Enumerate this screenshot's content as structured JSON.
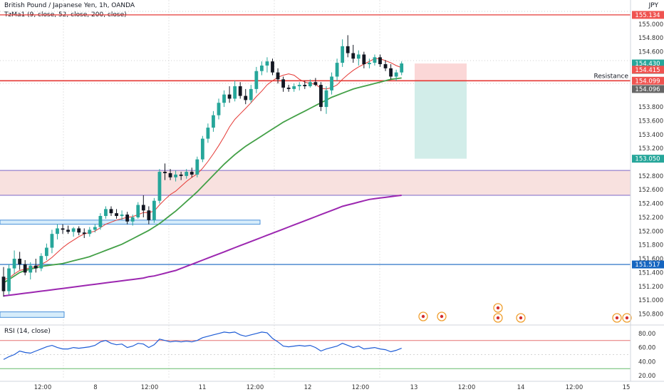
{
  "header": {
    "title": "British Pound / Japanese Yen, 1h, OANDA",
    "indicator": "TzMa1 (9, close, 52, close, 200, close)",
    "currency": "JPY"
  },
  "rsi_panel": {
    "label": "RSI (14, close)",
    "ticks": [
      "80.00",
      "60.00",
      "40.00",
      "20.00"
    ]
  },
  "price_ticks": [
    "155.000",
    "154.800",
    "154.600",
    "154.200",
    "153.800",
    "153.600",
    "153.400",
    "153.200",
    "152.800",
    "152.600",
    "152.400",
    "152.200",
    "152.000",
    "151.800",
    "151.600",
    "151.400",
    "151.200",
    "151.000",
    "150.800"
  ],
  "price_badges": [
    {
      "text": "155.134",
      "price": 155.134,
      "color": "#ef5350"
    },
    {
      "text": "154.430",
      "sub": "26:08",
      "price": 154.43,
      "color": "#26a69a"
    },
    {
      "text": "154.415",
      "price": 154.34,
      "color": "#ef5350"
    },
    {
      "text": "154.099",
      "price": 154.18,
      "color": "#ef5350"
    },
    {
      "text": "154.096",
      "price": 154.06,
      "color": "#666666"
    },
    {
      "text": "153.050",
      "price": 153.05,
      "color": "#26a69a"
    },
    {
      "text": "151.517",
      "price": 151.517,
      "color": "#1565c0"
    }
  ],
  "annotations": {
    "resistance": "Resistance"
  },
  "x_ticks": [
    "12:00",
    "8",
    "12:00",
    "11",
    "12:00",
    "12",
    "12:00",
    "13",
    "12:00",
    "14",
    "12:00",
    "15"
  ],
  "colors": {
    "up": "#26a69a",
    "down": "#131722",
    "ma_fast": "#e53935",
    "ma_mid": "#43a047",
    "ma_slow": "#9c27b0",
    "rsi": "#1e5cd6"
  },
  "chart_data": {
    "type": "candlestick",
    "title": "British Pound / Japanese Yen, 1h, OANDA",
    "ylim": [
      150.65,
      155.35
    ],
    "rsi_ylim": [
      15,
      90
    ],
    "candles": [
      {
        "o": 151.34,
        "h": 151.48,
        "l": 151.05,
        "c": 151.13
      },
      {
        "o": 151.13,
        "h": 151.52,
        "l": 151.08,
        "c": 151.46
      },
      {
        "o": 151.46,
        "h": 151.72,
        "l": 151.38,
        "c": 151.6
      },
      {
        "o": 151.6,
        "h": 151.7,
        "l": 151.44,
        "c": 151.52
      },
      {
        "o": 151.52,
        "h": 151.58,
        "l": 151.36,
        "c": 151.4
      },
      {
        "o": 151.4,
        "h": 151.55,
        "l": 151.3,
        "c": 151.5
      },
      {
        "o": 151.5,
        "h": 151.6,
        "l": 151.4,
        "c": 151.46
      },
      {
        "o": 151.46,
        "h": 151.68,
        "l": 151.42,
        "c": 151.64
      },
      {
        "o": 151.64,
        "h": 151.82,
        "l": 151.58,
        "c": 151.76
      },
      {
        "o": 151.76,
        "h": 152.02,
        "l": 151.68,
        "c": 151.96
      },
      {
        "o": 151.96,
        "h": 152.1,
        "l": 151.88,
        "c": 152.04
      },
      {
        "o": 152.04,
        "h": 152.1,
        "l": 151.96,
        "c": 152.02
      },
      {
        "o": 152.02,
        "h": 152.08,
        "l": 151.96,
        "c": 151.99
      },
      {
        "o": 151.99,
        "h": 152.06,
        "l": 151.92,
        "c": 152.04
      },
      {
        "o": 152.04,
        "h": 152.07,
        "l": 151.94,
        "c": 151.98
      },
      {
        "o": 151.98,
        "h": 152.04,
        "l": 151.9,
        "c": 151.96
      },
      {
        "o": 151.96,
        "h": 152.06,
        "l": 151.92,
        "c": 152.02
      },
      {
        "o": 152.02,
        "h": 152.1,
        "l": 151.98,
        "c": 152.06
      },
      {
        "o": 152.06,
        "h": 152.26,
        "l": 152.02,
        "c": 152.22
      },
      {
        "o": 152.22,
        "h": 152.36,
        "l": 152.18,
        "c": 152.32
      },
      {
        "o": 152.32,
        "h": 152.36,
        "l": 152.22,
        "c": 152.26
      },
      {
        "o": 152.26,
        "h": 152.32,
        "l": 152.18,
        "c": 152.22
      },
      {
        "o": 152.22,
        "h": 152.3,
        "l": 152.16,
        "c": 152.24
      },
      {
        "o": 152.24,
        "h": 152.28,
        "l": 152.1,
        "c": 152.14
      },
      {
        "o": 152.14,
        "h": 152.24,
        "l": 152.08,
        "c": 152.2
      },
      {
        "o": 152.2,
        "h": 152.42,
        "l": 152.18,
        "c": 152.38
      },
      {
        "o": 152.38,
        "h": 152.52,
        "l": 152.2,
        "c": 152.3
      },
      {
        "o": 152.3,
        "h": 152.36,
        "l": 152.1,
        "c": 152.16
      },
      {
        "o": 152.16,
        "h": 152.48,
        "l": 152.12,
        "c": 152.44
      },
      {
        "o": 152.44,
        "h": 152.9,
        "l": 152.4,
        "c": 152.86
      },
      {
        "o": 152.86,
        "h": 152.98,
        "l": 152.74,
        "c": 152.84
      },
      {
        "o": 152.84,
        "h": 152.9,
        "l": 152.74,
        "c": 152.78
      },
      {
        "o": 152.78,
        "h": 152.88,
        "l": 152.72,
        "c": 152.82
      },
      {
        "o": 152.82,
        "h": 152.86,
        "l": 152.74,
        "c": 152.8
      },
      {
        "o": 152.8,
        "h": 152.9,
        "l": 152.76,
        "c": 152.86
      },
      {
        "o": 152.86,
        "h": 152.92,
        "l": 152.78,
        "c": 152.82
      },
      {
        "o": 152.82,
        "h": 153.08,
        "l": 152.78,
        "c": 153.04
      },
      {
        "o": 153.04,
        "h": 153.38,
        "l": 153.0,
        "c": 153.34
      },
      {
        "o": 153.34,
        "h": 153.56,
        "l": 153.28,
        "c": 153.5
      },
      {
        "o": 153.5,
        "h": 153.74,
        "l": 153.44,
        "c": 153.68
      },
      {
        "o": 153.68,
        "h": 153.92,
        "l": 153.62,
        "c": 153.86
      },
      {
        "o": 153.86,
        "h": 154.04,
        "l": 153.8,
        "c": 153.98
      },
      {
        "o": 153.98,
        "h": 154.1,
        "l": 153.86,
        "c": 153.92
      },
      {
        "o": 153.92,
        "h": 154.18,
        "l": 153.88,
        "c": 154.1
      },
      {
        "o": 154.1,
        "h": 154.16,
        "l": 153.92,
        "c": 153.96
      },
      {
        "o": 153.96,
        "h": 154.06,
        "l": 153.84,
        "c": 153.9
      },
      {
        "o": 153.9,
        "h": 154.12,
        "l": 153.86,
        "c": 154.06
      },
      {
        "o": 154.06,
        "h": 154.38,
        "l": 154.0,
        "c": 154.32
      },
      {
        "o": 154.32,
        "h": 154.46,
        "l": 154.26,
        "c": 154.4
      },
      {
        "o": 154.4,
        "h": 154.52,
        "l": 154.3,
        "c": 154.46
      },
      {
        "o": 154.46,
        "h": 154.5,
        "l": 154.26,
        "c": 154.3
      },
      {
        "o": 154.3,
        "h": 154.36,
        "l": 154.14,
        "c": 154.2
      },
      {
        "o": 154.2,
        "h": 154.24,
        "l": 154.02,
        "c": 154.08
      },
      {
        "o": 154.08,
        "h": 154.12,
        "l": 154.02,
        "c": 154.06
      },
      {
        "o": 154.06,
        "h": 154.14,
        "l": 154.02,
        "c": 154.1
      },
      {
        "o": 154.1,
        "h": 154.16,
        "l": 154.04,
        "c": 154.12
      },
      {
        "o": 154.12,
        "h": 154.18,
        "l": 154.06,
        "c": 154.1
      },
      {
        "o": 154.1,
        "h": 154.2,
        "l": 154.08,
        "c": 154.16
      },
      {
        "o": 154.16,
        "h": 154.22,
        "l": 154.1,
        "c": 154.12
      },
      {
        "o": 154.12,
        "h": 154.16,
        "l": 153.74,
        "c": 153.8
      },
      {
        "o": 153.8,
        "h": 154.1,
        "l": 153.7,
        "c": 154.04
      },
      {
        "o": 154.04,
        "h": 154.3,
        "l": 153.98,
        "c": 154.24
      },
      {
        "o": 154.24,
        "h": 154.5,
        "l": 154.18,
        "c": 154.44
      },
      {
        "o": 154.44,
        "h": 154.78,
        "l": 154.38,
        "c": 154.68
      },
      {
        "o": 154.68,
        "h": 154.84,
        "l": 154.52,
        "c": 154.58
      },
      {
        "o": 154.58,
        "h": 154.7,
        "l": 154.44,
        "c": 154.5
      },
      {
        "o": 154.5,
        "h": 154.62,
        "l": 154.4,
        "c": 154.56
      },
      {
        "o": 154.56,
        "h": 154.6,
        "l": 154.36,
        "c": 154.42
      },
      {
        "o": 154.42,
        "h": 154.5,
        "l": 154.36,
        "c": 154.44
      },
      {
        "o": 154.44,
        "h": 154.56,
        "l": 154.4,
        "c": 154.52
      },
      {
        "o": 154.52,
        "h": 154.56,
        "l": 154.38,
        "c": 154.42
      },
      {
        "o": 154.42,
        "h": 154.48,
        "l": 154.32,
        "c": 154.36
      },
      {
        "o": 154.36,
        "h": 154.42,
        "l": 154.2,
        "c": 154.24
      },
      {
        "o": 154.24,
        "h": 154.34,
        "l": 154.18,
        "c": 154.3
      },
      {
        "o": 154.3,
        "h": 154.46,
        "l": 154.26,
        "c": 154.43
      }
    ],
    "ma9": [
      151.3,
      151.32,
      151.38,
      151.43,
      151.45,
      151.47,
      151.49,
      151.52,
      151.56,
      151.62,
      151.69,
      151.76,
      151.82,
      151.87,
      151.92,
      151.96,
      151.98,
      152.0,
      152.05,
      152.1,
      152.13,
      152.16,
      152.18,
      152.2,
      152.21,
      152.24,
      152.27,
      152.27,
      152.29,
      152.38,
      152.46,
      152.53,
      152.58,
      152.65,
      152.72,
      152.78,
      152.83,
      152.91,
      153.01,
      153.12,
      153.24,
      153.37,
      153.51,
      153.62,
      153.7,
      153.78,
      153.86,
      153.95,
      154.03,
      154.12,
      154.18,
      154.23,
      154.26,
      154.28,
      154.26,
      154.2,
      154.16,
      154.14,
      154.13,
      154.07,
      154.06,
      154.08,
      154.12,
      154.2,
      154.27,
      154.33,
      154.38,
      154.42,
      154.46,
      154.5,
      154.5,
      154.47,
      154.44,
      154.4,
      154.37
    ],
    "ma52": [
      151.25,
      151.3,
      151.35,
      151.4,
      151.43,
      151.45,
      151.47,
      151.49,
      151.5,
      151.51,
      151.52,
      151.53,
      151.55,
      151.57,
      151.59,
      151.61,
      151.63,
      151.66,
      151.69,
      151.72,
      151.75,
      151.78,
      151.81,
      151.85,
      151.89,
      151.93,
      151.97,
      152.01,
      152.06,
      152.11,
      152.17,
      152.23,
      152.29,
      152.36,
      152.43,
      152.5,
      152.57,
      152.65,
      152.73,
      152.81,
      152.89,
      152.97,
      153.04,
      153.11,
      153.17,
      153.23,
      153.28,
      153.33,
      153.38,
      153.43,
      153.48,
      153.53,
      153.58,
      153.62,
      153.66,
      153.7,
      153.74,
      153.78,
      153.82,
      153.86,
      153.9,
      153.94,
      153.97,
      154.0,
      154.03,
      154.06,
      154.08,
      154.1,
      154.12,
      154.14,
      154.16,
      154.18,
      154.2,
      154.21,
      154.22
    ],
    "ma200": [
      151.06,
      151.07,
      151.08,
      151.09,
      151.1,
      151.11,
      151.12,
      151.13,
      151.14,
      151.15,
      151.16,
      151.17,
      151.18,
      151.19,
      151.2,
      151.21,
      151.22,
      151.23,
      151.24,
      151.25,
      151.26,
      151.27,
      151.28,
      151.29,
      151.3,
      151.31,
      151.32,
      151.34,
      151.35,
      151.37,
      151.39,
      151.41,
      151.43,
      151.46,
      151.49,
      151.52,
      151.55,
      151.58,
      151.61,
      151.64,
      151.67,
      151.7,
      151.73,
      151.76,
      151.79,
      151.82,
      151.85,
      151.88,
      151.91,
      151.94,
      151.97,
      152.0,
      152.03,
      152.06,
      152.09,
      152.12,
      152.15,
      152.18,
      152.21,
      152.24,
      152.27,
      152.3,
      152.33,
      152.36,
      152.38,
      152.4,
      152.42,
      152.44,
      152.46,
      152.47,
      152.48,
      152.49,
      152.5,
      152.51,
      152.52
    ],
    "rsi": [
      43,
      47,
      50,
      55,
      53,
      52,
      55,
      58,
      61,
      63,
      60,
      58,
      58,
      60,
      59,
      60,
      61,
      63,
      68,
      70,
      66,
      64,
      65,
      60,
      62,
      66,
      65,
      60,
      64,
      72,
      70,
      68,
      69,
      68,
      69,
      68,
      70,
      74,
      76,
      78,
      80,
      82,
      81,
      82,
      78,
      76,
      78,
      80,
      82,
      81,
      73,
      68,
      62,
      61,
      62,
      63,
      62,
      63,
      60,
      55,
      58,
      60,
      62,
      66,
      63,
      60,
      62,
      58,
      59,
      60,
      58,
      57,
      54,
      56,
      59
    ],
    "resistance_level": 154.18,
    "support_level": 151.517,
    "top_level": 155.134,
    "zones": [
      {
        "name": "supply",
        "from": 152.52,
        "to": 152.88,
        "color": "#f8e1df",
        "border": "#7b68c8"
      }
    ],
    "boxes": [
      {
        "from": 152.1,
        "to": 152.16,
        "color": "#d6ecfa",
        "border": "#4a90d9"
      },
      {
        "from": 150.75,
        "to": 150.83,
        "color": "#d6ecfa",
        "border": "#4a90d9"
      }
    ],
    "position": {
      "entry": 154.18,
      "stop": 154.43,
      "target": 153.05
    }
  }
}
